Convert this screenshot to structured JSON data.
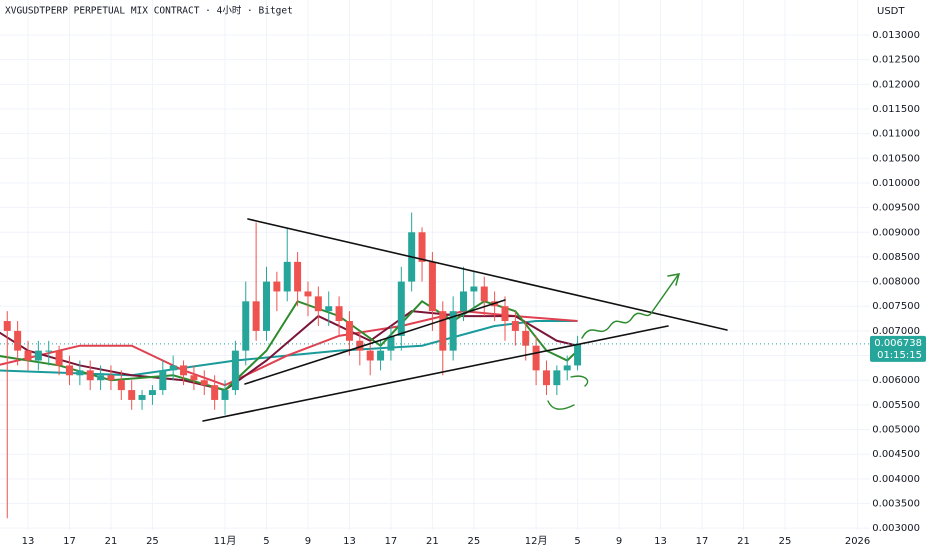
{
  "chart_data": {
    "type": "candlestick",
    "title": "XVGUSDTPERP PERPETUAL MIX CONTRACT · 4小时 · Bitget",
    "y_axis_label": "USDT",
    "x": [
      -2,
      -1,
      0,
      1,
      2,
      3,
      4,
      5,
      6,
      7,
      8,
      9,
      10,
      11,
      12,
      13,
      14,
      15,
      16,
      17,
      18,
      19,
      20,
      21,
      22,
      23,
      24,
      25,
      26,
      27,
      28,
      29,
      30,
      31,
      32,
      33,
      34,
      35,
      36,
      37,
      38,
      39,
      40,
      41,
      42,
      43,
      44,
      45,
      46,
      47,
      48,
      49,
      50,
      51,
      52,
      53
    ],
    "open": [
      0.0072,
      0.007,
      0.0066,
      0.0064,
      0.0066,
      0.0066,
      0.0063,
      0.0061,
      0.0062,
      0.006,
      0.0061,
      0.006,
      0.0058,
      0.0056,
      0.0057,
      0.0058,
      0.0062,
      0.0063,
      0.0061,
      0.006,
      0.0059,
      0.0056,
      0.0058,
      0.0066,
      0.0076,
      0.007,
      0.008,
      0.0078,
      0.0084,
      0.0078,
      0.0077,
      0.0074,
      0.0075,
      0.0072,
      0.0068,
      0.0066,
      0.0064,
      0.0066,
      0.0069,
      0.008,
      0.009,
      0.0084,
      0.0074,
      0.0066,
      0.0074,
      0.0078,
      0.0079,
      0.0076,
      0.0075,
      0.0072,
      0.007,
      0.0067,
      0.0062,
      0.0059,
      0.0062,
      0.0063
    ],
    "high": [
      0.0074,
      0.0072,
      0.0068,
      0.0068,
      0.0068,
      0.0067,
      0.0065,
      0.0064,
      0.0064,
      0.0063,
      0.0063,
      0.0062,
      0.006,
      0.0058,
      0.0059,
      0.0064,
      0.0065,
      0.0064,
      0.0063,
      0.0062,
      0.0061,
      0.006,
      0.0068,
      0.008,
      0.0092,
      0.0083,
      0.0082,
      0.0091,
      0.0086,
      0.008,
      0.0079,
      0.0078,
      0.0077,
      0.0074,
      0.007,
      0.0068,
      0.0068,
      0.0071,
      0.0083,
      0.0094,
      0.0091,
      0.0086,
      0.0076,
      0.0077,
      0.0083,
      0.0082,
      0.0081,
      0.0078,
      0.0077,
      0.0074,
      0.0072,
      0.0069,
      0.0064,
      0.0063,
      0.0065,
      0.0069
    ],
    "low": [
      0.0032,
      0.0063,
      0.0062,
      0.0062,
      0.0063,
      0.0061,
      0.0059,
      0.0059,
      0.0058,
      0.0058,
      0.0058,
      0.0056,
      0.0054,
      0.0054,
      0.0055,
      0.0057,
      0.006,
      0.0059,
      0.0058,
      0.0057,
      0.0054,
      0.0053,
      0.0057,
      0.0063,
      0.0068,
      0.0068,
      0.0074,
      0.0076,
      0.0075,
      0.0073,
      0.0071,
      0.0071,
      0.0069,
      0.0065,
      0.0063,
      0.0061,
      0.0062,
      0.0064,
      0.0066,
      0.0078,
      0.008,
      0.007,
      0.0061,
      0.0064,
      0.0072,
      0.0074,
      0.0073,
      0.0072,
      0.0068,
      0.0067,
      0.0064,
      0.0059,
      0.0057,
      0.0057,
      0.006,
      0.0062
    ],
    "close": [
      0.007,
      0.0066,
      0.0064,
      0.0066,
      0.0066,
      0.0063,
      0.0061,
      0.0062,
      0.006,
      0.0061,
      0.006,
      0.0058,
      0.0056,
      0.0057,
      0.0058,
      0.0062,
      0.0063,
      0.0061,
      0.006,
      0.0059,
      0.0056,
      0.0058,
      0.0066,
      0.0076,
      0.007,
      0.008,
      0.0078,
      0.0084,
      0.0078,
      0.0077,
      0.0074,
      0.0075,
      0.0072,
      0.0068,
      0.0066,
      0.0064,
      0.0066,
      0.0069,
      0.008,
      0.009,
      0.0084,
      0.0074,
      0.0066,
      0.0074,
      0.0078,
      0.0079,
      0.0076,
      0.0075,
      0.0072,
      0.007,
      0.0067,
      0.0062,
      0.0059,
      0.0062,
      0.0063,
      0.006738
    ],
    "up_color": "#26a69a",
    "down_color": "#ef5350",
    "moving_averages": [
      {
        "color": "#1a9a9a",
        "x": [
          -3,
          10,
          20,
          30,
          38,
          45,
          49,
          53
        ],
        "values": [
          0.0062,
          0.0061,
          0.0064,
          0.0066,
          0.0067,
          0.0071,
          0.0072,
          0.0072
        ]
      },
      {
        "color": "#e0404f",
        "x": [
          -3,
          5,
          10,
          15,
          19,
          25,
          30,
          36,
          42,
          47,
          53
        ],
        "values": [
          0.0063,
          0.0067,
          0.0067,
          0.0062,
          0.0059,
          0.0065,
          0.0069,
          0.0071,
          0.0074,
          0.0073,
          0.0072
        ]
      },
      {
        "color": "#7b1538",
        "x": [
          -3,
          0,
          5,
          10,
          15,
          19,
          23,
          28,
          33,
          37,
          42,
          47,
          51,
          53
        ],
        "values": [
          0.007,
          0.0066,
          0.0063,
          0.0061,
          0.006,
          0.0058,
          0.0064,
          0.0073,
          0.0068,
          0.0074,
          0.0073,
          0.0073,
          0.0068,
          0.0067
        ]
      },
      {
        "color": "#2e8b2e",
        "x": [
          -3,
          3,
          8,
          14,
          19,
          23,
          26,
          30,
          34,
          38,
          41,
          44,
          47,
          50,
          52,
          53
        ],
        "values": [
          0.0065,
          0.0063,
          0.006,
          0.0061,
          0.0058,
          0.0066,
          0.0076,
          0.0073,
          0.0067,
          0.0076,
          0.0072,
          0.0076,
          0.0074,
          0.0066,
          0.0064,
          0.0066
        ]
      }
    ],
    "xlim": [
      -2.7,
      81.2
    ],
    "ylim": [
      0.00276,
      0.01371
    ],
    "xticks": [
      {
        "value": 0,
        "label": "13"
      },
      {
        "value": 4,
        "label": "17"
      },
      {
        "value": 8,
        "label": "21"
      },
      {
        "value": 12,
        "label": "25"
      },
      {
        "value": 19,
        "label": "11月"
      },
      {
        "value": 23,
        "label": "5"
      },
      {
        "value": 27,
        "label": "9"
      },
      {
        "value": 31,
        "label": "13"
      },
      {
        "value": 35,
        "label": "17"
      },
      {
        "value": 39,
        "label": "21"
      },
      {
        "value": 43,
        "label": "25"
      },
      {
        "value": 49,
        "label": "12月"
      },
      {
        "value": 53,
        "label": "5"
      },
      {
        "value": 57,
        "label": "9"
      },
      {
        "value": 61,
        "label": "13"
      },
      {
        "value": 65,
        "label": "17"
      },
      {
        "value": 69,
        "label": "21"
      },
      {
        "value": 73,
        "label": "25"
      },
      {
        "value": 80,
        "label": "2026"
      }
    ],
    "yticks": [
      {
        "value": 0.003,
        "label": "0.003000"
      },
      {
        "value": 0.0035,
        "label": "0.003500"
      },
      {
        "value": 0.004,
        "label": "0.004000"
      },
      {
        "value": 0.0045,
        "label": "0.004500"
      },
      {
        "value": 0.005,
        "label": "0.005000"
      },
      {
        "value": 0.0055,
        "label": "0.005500"
      },
      {
        "value": 0.006,
        "label": "0.006000"
      },
      {
        "value": 0.0065,
        "label": "0.006500"
      },
      {
        "value": 0.007,
        "label": "0.007000"
      },
      {
        "value": 0.0075,
        "label": "0.007500"
      },
      {
        "value": 0.008,
        "label": "0.008000"
      },
      {
        "value": 0.0085,
        "label": "0.008500"
      },
      {
        "value": 0.009,
        "label": "0.009000"
      },
      {
        "value": 0.0095,
        "label": "0.009500"
      },
      {
        "value": 0.01,
        "label": "0.010000"
      },
      {
        "value": 0.0105,
        "label": "0.010500"
      },
      {
        "value": 0.011,
        "label": "0.011000"
      },
      {
        "value": 0.0115,
        "label": "0.011500"
      },
      {
        "value": 0.012,
        "label": "0.012000"
      },
      {
        "value": 0.0125,
        "label": "0.012500"
      },
      {
        "value": 0.013,
        "label": "0.013000"
      }
    ],
    "last_price": {
      "value": 0.006738,
      "label": "0.006738"
    },
    "countdown": "01:15:15",
    "grid": true
  }
}
